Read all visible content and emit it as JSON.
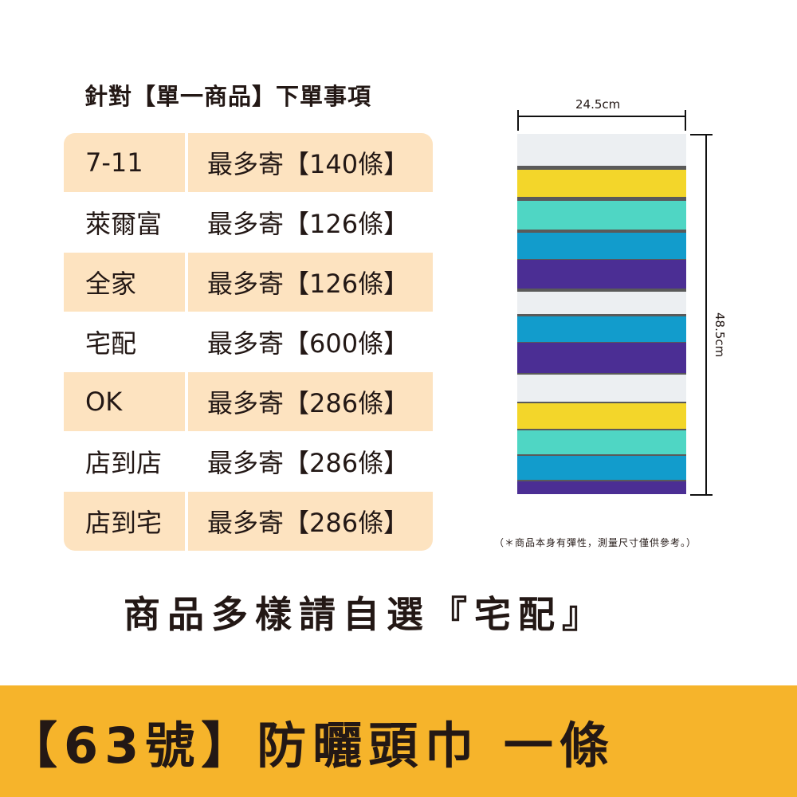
{
  "title": "針對【單一商品】下單事項",
  "rows": [
    {
      "carrier": "7-11",
      "limit": "最多寄【140條】"
    },
    {
      "carrier": "萊爾富",
      "limit": "最多寄【126條】"
    },
    {
      "carrier": "全家",
      "limit": "最多寄【126條】"
    },
    {
      "carrier": "宅配",
      "limit": "最多寄【600條】"
    },
    {
      "carrier": "OK",
      "limit": "最多寄【286條】"
    },
    {
      "carrier": "店到店",
      "limit": "最多寄【286條】"
    },
    {
      "carrier": "店到宅",
      "limit": "最多寄【286條】"
    }
  ],
  "dimensions": {
    "width": "24.5cm",
    "height": "48.5cm"
  },
  "note": "（＊商品本身有彈性，測量尺寸僅供參考。）",
  "headline": "商品多樣請自選『宅配』",
  "banner": "【63號】防曬頭巾 一條",
  "colors": {
    "row_shade": "#fde3c0",
    "banner": "#f6b42b",
    "stripes": [
      "#eceff2",
      "#f3d62a",
      "#4fd6c4",
      "#129ccc",
      "#4b2e94"
    ]
  }
}
